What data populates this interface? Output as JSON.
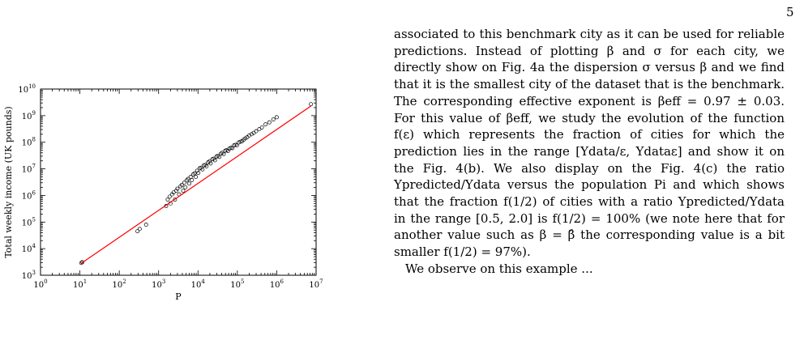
{
  "page": {
    "number": "5"
  },
  "body_text": {
    "paragraph_1": "associated to this benchmark city as it can be used for reliable predictions. Instead of plotting β and σ for each city, we directly show on Fig. 4a the dispersion σ versus β and we find that it is the smallest city of the dataset that is the benchmark. The corresponding effective exponent is βeff = 0.97 ± 0.03. For this value of βeff, we study the evolution of the function f(ε) which represents the fraction of cities for which the prediction lies in the range [Ydata/ε, Ydataε] and show it on the Fig. 4(b). We also display on the Fig. 4(c) the ratio Ypredicted/Ydata versus the population Pi and which shows that the fraction f(1/2) of cities with a ratio Ypredicted/Ydata in the range [0.5, 2.0] is f(1/2) = 100% (we note here that for another value such as β = β̂ the corresponding value is a bit smaller f(1/2) = 97%).",
    "paragraph_2_start": "We observe on this example ..."
  },
  "chart_data": {
    "type": "scatter",
    "title": "",
    "xlabel": "P",
    "ylabel": "Total weekly income (UK pounds)",
    "xscale": "log",
    "yscale": "log",
    "xlim": [
      1,
      10000000
    ],
    "ylim": [
      1000,
      10000000000
    ],
    "x_ticks": [
      "10^0",
      "10^1",
      "10^2",
      "10^3",
      "10^4",
      "10^5",
      "10^6",
      "10^7"
    ],
    "y_ticks": [
      "10^3",
      "10^4",
      "10^5",
      "10^6",
      "10^7",
      "10^8",
      "10^9",
      "10^10"
    ],
    "grid": false,
    "marker": "open-circle",
    "series": [
      {
        "kind": "points",
        "color": "#000000",
        "x": [
          10.8,
          11.5,
          290,
          330,
          480,
          1550,
          1700,
          1900,
          2000,
          2200,
          2400,
          2600,
          2800,
          3000,
          3300,
          3600,
          3900,
          4200,
          4500,
          4800,
          5200,
          5600,
          6000,
          6500,
          7000,
          7600,
          8200,
          8800,
          9500,
          10200,
          11000,
          12000,
          13000,
          14000,
          15200,
          16500,
          18000,
          19500,
          21000,
          23000,
          25000,
          27000,
          29500,
          32000,
          35000,
          38000,
          41000,
          45000,
          49000,
          53000,
          58000,
          63000,
          69000,
          75000,
          82000,
          90000,
          98000,
          108000,
          120000,
          132000,
          145000,
          160000,
          178000,
          200000,
          230000,
          260000,
          300000,
          360000,
          420000,
          520000,
          650000,
          820000,
          1000000,
          7400000
        ],
        "y": [
          2900,
          3100,
          45000,
          55000,
          80000,
          400000,
          700000,
          900000,
          500000,
          1100000,
          1300000,
          700000,
          1500000,
          1800000,
          1100000,
          2200000,
          2500000,
          1500000,
          3000000,
          2000000,
          3700000,
          4200000,
          2800000,
          5000000,
          3800000,
          6200000,
          6800000,
          5000000,
          8500000,
          7000000,
          10500000,
          11000000,
          9500000,
          13500000,
          14000000,
          12500000,
          17500000,
          19000000,
          16000000,
          23000000,
          24000000,
          21000000,
          29000000,
          31000000,
          28000000,
          37000000,
          40000000,
          36000000,
          48000000,
          50000000,
          47000000,
          58000000,
          62000000,
          60000000,
          76000000,
          80000000,
          77000000,
          98000000,
          105000000,
          110000000,
          125000000,
          140000000,
          155000000,
          180000000,
          200000000,
          225000000,
          260000000,
          310000000,
          360000000,
          470000000,
          560000000,
          720000000,
          870000000,
          2700000000
        ]
      },
      {
        "kind": "fit-line",
        "color": "#ff0000",
        "x": [
          10.8,
          7400000
        ],
        "y": [
          2800,
          2300000000
        ]
      }
    ]
  }
}
